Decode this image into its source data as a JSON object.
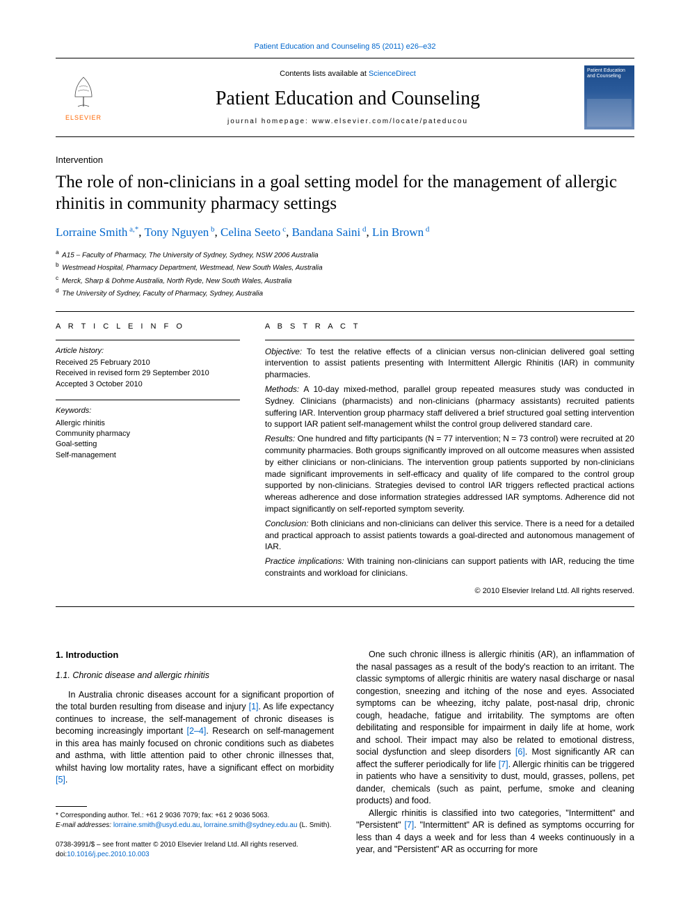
{
  "top_citation": "Patient Education and Counseling 85 (2011) e26–e32",
  "header": {
    "contents_prefix": "Contents lists available at ",
    "contents_link": "ScienceDirect",
    "journal_name": "Patient Education and Counseling",
    "homepage_prefix": "journal homepage: ",
    "homepage_url": "www.elsevier.com/locate/pateducou",
    "elsevier_label": "ELSEVIER",
    "cover_title": "Patient Education and Counseling"
  },
  "article": {
    "section_label": "Intervention",
    "title": "The role of non-clinicians in a goal setting model for the management of allergic rhinitis in community pharmacy settings",
    "authors": [
      {
        "name": "Lorraine Smith",
        "sup": "a,*"
      },
      {
        "name": "Tony Nguyen",
        "sup": "b"
      },
      {
        "name": "Celina Seeto",
        "sup": "c"
      },
      {
        "name": "Bandana Saini",
        "sup": "d"
      },
      {
        "name": "Lin Brown",
        "sup": "d"
      }
    ],
    "affiliations": [
      {
        "sup": "a",
        "text": "A15 – Faculty of Pharmacy, The University of Sydney, Sydney, NSW 2006 Australia"
      },
      {
        "sup": "b",
        "text": "Westmead Hospital, Pharmacy Department, Westmead, New South Wales, Australia"
      },
      {
        "sup": "c",
        "text": "Merck, Sharp & Dohme Australia, North Ryde, New South Wales, Australia"
      },
      {
        "sup": "d",
        "text": "The University of Sydney, Faculty of Pharmacy, Sydney, Australia"
      }
    ]
  },
  "info": {
    "heading": "A R T I C L E  I N F O",
    "history_label": "Article history:",
    "history": [
      "Received 25 February 2010",
      "Received in revised form 29 September 2010",
      "Accepted 3 October 2010"
    ],
    "keywords_label": "Keywords:",
    "keywords": [
      "Allergic rhinitis",
      "Community pharmacy",
      "Goal-setting",
      "Self-management"
    ]
  },
  "abstract": {
    "heading": "A B S T R A C T",
    "objective_label": "Objective:",
    "objective": " To test the relative effects of a clinician versus non-clinician delivered goal setting intervention to assist patients presenting with Intermittent Allergic Rhinitis (IAR) in community pharmacies.",
    "methods_label": "Methods:",
    "methods": " A 10-day mixed-method, parallel group repeated measures study was conducted in Sydney. Clinicians (pharmacists) and non-clinicians (pharmacy assistants) recruited patients suffering IAR. Intervention group pharmacy staff delivered a brief structured goal setting intervention to support IAR patient self-management whilst the control group delivered standard care.",
    "results_label": "Results:",
    "results": " One hundred and fifty participants (N = 77 intervention; N = 73 control) were recruited at 20 community pharmacies. Both groups significantly improved on all outcome measures when assisted by either clinicians or non-clinicians. The intervention group patients supported by non-clinicians made significant improvements in self-efficacy and quality of life compared to the control group supported by non-clinicians. Strategies devised to control IAR triggers reflected practical actions whereas adherence and dose information strategies addressed IAR symptoms. Adherence did not impact significantly on self-reported symptom severity.",
    "conclusion_label": "Conclusion:",
    "conclusion": " Both clinicians and non-clinicians can deliver this service. There is a need for a detailed and practical approach to assist patients towards a goal-directed and autonomous management of IAR.",
    "practice_label": "Practice implications:",
    "practice": " With training non-clinicians can support patients with IAR, reducing the time constraints and workload for clinicians.",
    "copyright": "© 2010 Elsevier Ireland Ltd. All rights reserved."
  },
  "body": {
    "h1": "1. Introduction",
    "h2": "1.1. Chronic disease and allergic rhinitis",
    "left_p1a": "In Australia chronic diseases account for a significant proportion of the total burden resulting from disease and injury ",
    "left_ref1": "[1]",
    "left_p1b": ". As life expectancy continues to increase, the self-management of chronic diseases is becoming increasingly important ",
    "left_ref2": "[2–4]",
    "left_p1c": ". Research on self-management in this area has mainly focused on chronic conditions such as diabetes and asthma, with little attention paid to other chronic illnesses that, whilst having low mortality rates, have a significant effect on morbidity ",
    "left_ref3": "[5]",
    "left_p1d": ".",
    "right_p1a": "One such chronic illness is allergic rhinitis (AR), an inflammation of the nasal passages as a result of the body's reaction to an irritant. The classic symptoms of allergic rhinitis are watery nasal discharge or nasal congestion, sneezing and itching of the nose and eyes. Associated symptoms can be wheezing, itchy palate, post-nasal drip, chronic cough, headache, fatigue and irritability. The symptoms are often debilitating and responsible for impairment in daily life at home, work and school. Their impact may also be related to emotional distress, social dysfunction and sleep disorders ",
    "right_ref1": "[6]",
    "right_p1b": ". Most significantly AR can affect the sufferer periodically for life ",
    "right_ref2": "[7]",
    "right_p1c": ". Allergic rhinitis can be triggered in patients who have a sensitivity to dust, mould, grasses, pollens, pet dander, chemicals (such as paint, perfume, smoke and cleaning products) and food.",
    "right_p2a": "Allergic rhinitis is classified into two categories, \"Intermittent\" and \"Persistent\" ",
    "right_ref3": "[7]",
    "right_p2b": ". \"Intermittent\" AR is defined as symptoms occurring for less than 4 days a week and for less than 4 weeks continuously in a year, and \"Persistent\" AR as occurring for more"
  },
  "footnote": {
    "corr": "* Corresponding author. Tel.: +61 2 9036 7079; fax: +61 2 9036 5063.",
    "email_label": "E-mail addresses:",
    "email1": "lorraine.smith@usyd.edu.au",
    "email_sep": ", ",
    "email2": "lorraine.smith@sydney.edu.au",
    "email_tail": " (L. Smith)."
  },
  "bottom": {
    "issn_line": "0738-3991/$ – see front matter © 2010 Elsevier Ireland Ltd. All rights reserved.",
    "doi_prefix": "doi:",
    "doi": "10.1016/j.pec.2010.10.003"
  },
  "colors": {
    "link": "#0066cc",
    "elsevier_orange": "#ff6600",
    "text": "#000000",
    "bg": "#ffffff"
  }
}
